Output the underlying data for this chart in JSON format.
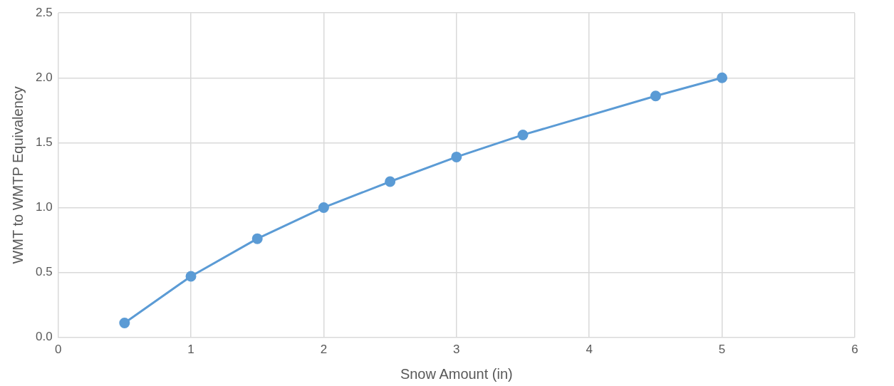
{
  "chart_data": {
    "type": "line",
    "xlabel": "Snow Amount (in)",
    "ylabel": "WMT to WMTP Equivalency",
    "x": [
      0.5,
      1,
      1.5,
      2,
      2.5,
      3,
      3.5,
      4.5,
      5
    ],
    "series": [
      {
        "color": "#5b9bd5",
        "values": [
          0.11,
          0.47,
          0.76,
          1.0,
          1.2,
          1.39,
          1.56,
          1.86,
          2.0
        ]
      }
    ],
    "xlim": [
      0,
      6
    ],
    "xticks": [
      0,
      1,
      2,
      3,
      4,
      5,
      6
    ],
    "ylim": [
      0,
      2.5
    ],
    "yticks": [
      {
        "value": 0,
        "label": "0.0"
      },
      {
        "value": 0.5,
        "label": "0.5"
      },
      {
        "value": 1,
        "label": "1.0"
      },
      {
        "value": 1.5,
        "label": "1.5"
      },
      {
        "value": 2,
        "label": "2.0"
      },
      {
        "value": 2.5,
        "label": "2.5"
      }
    ],
    "grid": true,
    "marker": "circle",
    "line_style": "solid",
    "legend": false
  }
}
